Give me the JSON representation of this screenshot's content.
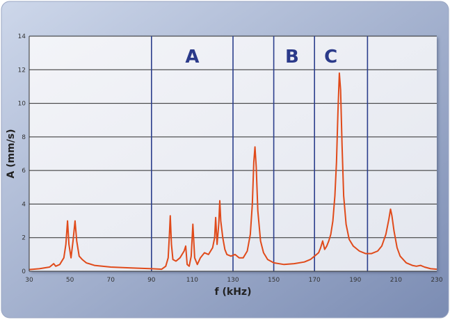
{
  "chart_data": {
    "type": "line",
    "xlabel": "f (kHz)",
    "ylabel": "A (mm/s)",
    "xlim": [
      30,
      230
    ],
    "ylim": [
      0,
      14
    ],
    "xticks": [
      30,
      50,
      70,
      90,
      110,
      130,
      150,
      170,
      190,
      210,
      230
    ],
    "yticks": [
      0,
      2,
      4,
      6,
      8,
      10,
      12,
      14
    ],
    "grid": "horizontal",
    "region_lines": [
      90,
      130,
      150,
      170,
      196
    ],
    "region_labels": [
      {
        "text": "A",
        "x": 110
      },
      {
        "text": "B",
        "x": 159
      },
      {
        "text": "C",
        "x": 178
      }
    ],
    "series": [
      {
        "color": "#e04a1a",
        "points": [
          [
            30,
            0.1
          ],
          [
            35,
            0.15
          ],
          [
            40,
            0.25
          ],
          [
            42,
            0.45
          ],
          [
            43,
            0.3
          ],
          [
            45,
            0.4
          ],
          [
            47,
            0.8
          ],
          [
            48,
            1.6
          ],
          [
            48.8,
            3.0
          ],
          [
            49.5,
            1.6
          ],
          [
            50.5,
            0.8
          ],
          [
            51.5,
            1.8
          ],
          [
            52.5,
            3.0
          ],
          [
            53.3,
            1.8
          ],
          [
            54.5,
            0.9
          ],
          [
            56,
            0.7
          ],
          [
            58,
            0.5
          ],
          [
            62,
            0.35
          ],
          [
            70,
            0.25
          ],
          [
            80,
            0.2
          ],
          [
            90,
            0.15
          ],
          [
            95,
            0.12
          ],
          [
            97,
            0.3
          ],
          [
            98.2,
            0.8
          ],
          [
            98.8,
            2.2
          ],
          [
            99.2,
            3.3
          ],
          [
            99.8,
            1.6
          ],
          [
            100.5,
            0.7
          ],
          [
            102,
            0.6
          ],
          [
            104,
            0.8
          ],
          [
            106,
            1.2
          ],
          [
            106.8,
            1.5
          ],
          [
            107.5,
            0.4
          ],
          [
            108.5,
            0.3
          ],
          [
            109.5,
            0.9
          ],
          [
            110.3,
            2.8
          ],
          [
            111.2,
            0.8
          ],
          [
            112.5,
            0.4
          ],
          [
            114,
            0.8
          ],
          [
            116,
            1.1
          ],
          [
            118,
            1.0
          ],
          [
            120,
            1.4
          ],
          [
            121,
            2.0
          ],
          [
            121.5,
            3.2
          ],
          [
            122.2,
            1.6
          ],
          [
            123,
            2.8
          ],
          [
            123.5,
            4.2
          ],
          [
            124,
            3.0
          ],
          [
            125,
            2.0
          ],
          [
            126,
            1.3
          ],
          [
            127,
            1.0
          ],
          [
            129,
            0.9
          ],
          [
            131,
            1.0
          ],
          [
            133,
            0.8
          ],
          [
            135,
            0.8
          ],
          [
            137,
            1.2
          ],
          [
            138.5,
            2.2
          ],
          [
            139.5,
            4.0
          ],
          [
            140.2,
            6.5
          ],
          [
            140.8,
            7.4
          ],
          [
            141.4,
            6.2
          ],
          [
            142.2,
            3.6
          ],
          [
            143.5,
            1.8
          ],
          [
            145,
            1.1
          ],
          [
            147,
            0.7
          ],
          [
            150,
            0.5
          ],
          [
            155,
            0.4
          ],
          [
            160,
            0.45
          ],
          [
            165,
            0.55
          ],
          [
            168,
            0.7
          ],
          [
            170,
            0.9
          ],
          [
            172,
            1.1
          ],
          [
            173,
            1.4
          ],
          [
            174,
            1.8
          ],
          [
            175,
            1.3
          ],
          [
            176,
            1.5
          ],
          [
            177,
            1.8
          ],
          [
            178,
            2.2
          ],
          [
            179,
            3.0
          ],
          [
            180,
            4.5
          ],
          [
            180.8,
            6.5
          ],
          [
            181.5,
            9.5
          ],
          [
            182.2,
            11.8
          ],
          [
            182.8,
            10.8
          ],
          [
            183.5,
            7.5
          ],
          [
            184.3,
            4.5
          ],
          [
            185.5,
            2.8
          ],
          [
            187,
            1.9
          ],
          [
            189,
            1.5
          ],
          [
            192,
            1.2
          ],
          [
            195,
            1.05
          ],
          [
            198,
            1.05
          ],
          [
            201,
            1.2
          ],
          [
            203,
            1.5
          ],
          [
            205,
            2.2
          ],
          [
            206.5,
            3.1
          ],
          [
            207.3,
            3.7
          ],
          [
            208,
            3.3
          ],
          [
            209,
            2.4
          ],
          [
            210.5,
            1.4
          ],
          [
            212,
            0.9
          ],
          [
            215,
            0.5
          ],
          [
            218,
            0.35
          ],
          [
            220,
            0.3
          ],
          [
            222,
            0.35
          ],
          [
            224,
            0.25
          ],
          [
            227,
            0.15
          ],
          [
            230,
            0.12
          ]
        ]
      }
    ]
  }
}
